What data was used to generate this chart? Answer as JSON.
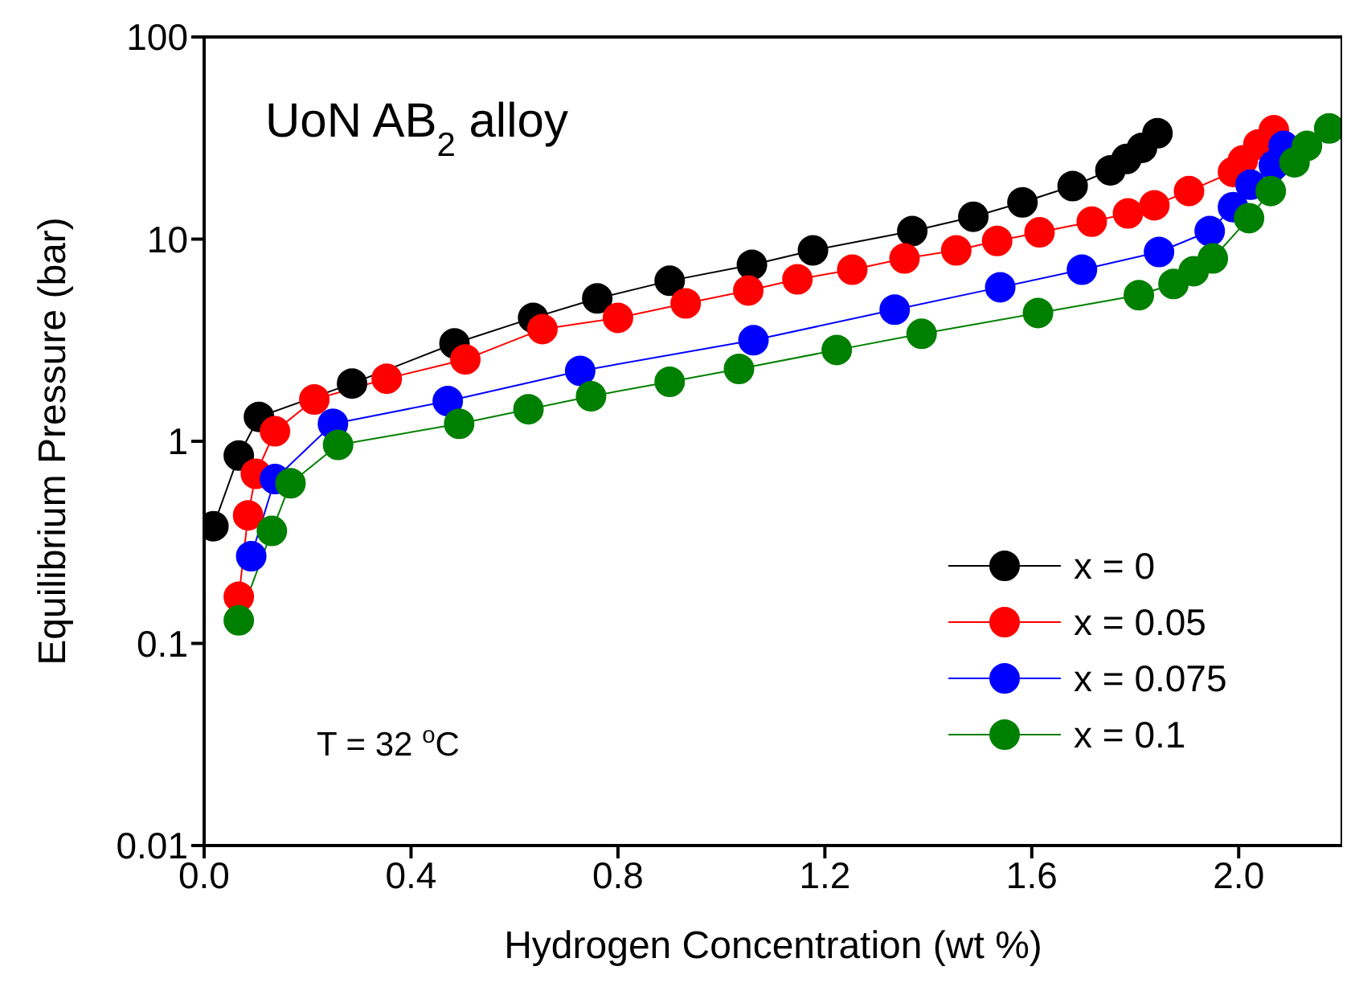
{
  "chart_data": {
    "type": "line",
    "xlabel": "Hydrogen Concentration (wt %)",
    "ylabel": "Equilibrium Pressure (bar)",
    "xlim": [
      0,
      2.2
    ],
    "xticks": [
      {
        "value": 0,
        "label": "0.0"
      },
      0.4,
      0.8,
      1.2,
      1.6,
      {
        "value": 2,
        "label": "2.0"
      }
    ],
    "ylim": [
      0.01,
      100
    ],
    "yticks": [
      0.01,
      0.1,
      1,
      10,
      100
    ],
    "log": "y",
    "grid": false,
    "legend": "bottom right",
    "marker": "circle",
    "line_style": "solid",
    "annotations": [
      "UoN AB$_{2}$ alloy",
      "T = 32 $^{o}$C"
    ],
    "series": [
      {
        "name": "x = 0",
        "color": "#000000",
        "x": [
          0.018,
          0.067,
          0.106,
          0.286,
          0.484,
          0.636,
          0.76,
          0.9,
          1.059,
          1.177,
          1.369,
          1.487,
          1.582,
          1.679,
          1.752,
          1.783,
          1.813,
          1.843
        ],
        "values": [
          0.38,
          0.85,
          1.32,
          1.93,
          3.05,
          4.08,
          5.09,
          6.22,
          7.46,
          8.8,
          10.96,
          12.9,
          15.2,
          18.3,
          21.9,
          24.9,
          28.3,
          33.4
        ]
      },
      {
        "name": "x = 0.05",
        "color": "#ff0000",
        "x": [
          0.067,
          0.085,
          0.1,
          0.137,
          0.213,
          0.353,
          0.505,
          0.654,
          0.8,
          0.931,
          1.052,
          1.147,
          1.253,
          1.354,
          1.454,
          1.533,
          1.615,
          1.716,
          1.786,
          1.837,
          1.904,
          1.989,
          2.008,
          2.038,
          2.068
        ],
        "values": [
          0.17,
          0.43,
          0.69,
          1.12,
          1.61,
          2.04,
          2.54,
          3.59,
          4.08,
          4.81,
          5.57,
          6.33,
          7.06,
          8.03,
          8.8,
          9.8,
          10.8,
          12.2,
          13.4,
          14.7,
          17.3,
          21.5,
          24.5,
          29.4,
          34.6
        ]
      },
      {
        "name": "x = 0.075",
        "color": "#0000ff",
        "x": [
          0.091,
          0.137,
          0.249,
          0.471,
          0.727,
          1.062,
          1.335,
          1.539,
          1.697,
          1.846,
          1.944,
          1.989,
          2.023,
          2.068,
          2.087
        ],
        "values": [
          0.27,
          0.65,
          1.22,
          1.58,
          2.23,
          3.16,
          4.48,
          5.78,
          7.06,
          8.64,
          10.96,
          14.4,
          18.6,
          23.2,
          28.9
        ]
      },
      {
        "name": "x = 0.1",
        "color": "#008000",
        "x": [
          0.067,
          0.131,
          0.167,
          0.259,
          0.493,
          0.627,
          0.748,
          0.9,
          1.034,
          1.223,
          1.387,
          1.612,
          1.807,
          1.874,
          1.913,
          1.95,
          2.02,
          2.062,
          2.108,
          2.132,
          2.175
        ],
        "values": [
          0.13,
          0.36,
          0.62,
          0.96,
          1.22,
          1.44,
          1.67,
          1.97,
          2.28,
          2.83,
          3.4,
          4.31,
          5.28,
          6.0,
          6.94,
          8.03,
          12.7,
          17.3,
          24.0,
          28.9,
          35.3
        ]
      }
    ]
  }
}
